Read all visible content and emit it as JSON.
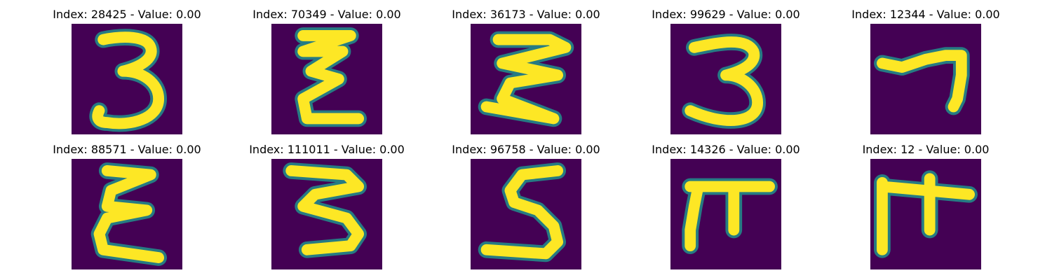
{
  "colors": {
    "background": "#440154",
    "stroke": "#fde725",
    "edge": "#21918c"
  },
  "images": [
    {
      "title": "Index: 28425 - Value: 0.00"
    },
    {
      "title": "Index: 70349 - Value: 0.00"
    },
    {
      "title": "Index: 36173 - Value: 0.00"
    },
    {
      "title": "Index: 99629 - Value: 0.00"
    },
    {
      "title": "Index: 12344 - Value: 0.00"
    },
    {
      "title": "Index: 88571 - Value: 0.00"
    },
    {
      "title": "Index: 111011 - Value: 0.00"
    },
    {
      "title": "Index: 96758 - Value: 0.00"
    },
    {
      "title": "Index: 14326 - Value: 0.00"
    },
    {
      "title": "Index: 12 - Value: 0.00"
    }
  ]
}
